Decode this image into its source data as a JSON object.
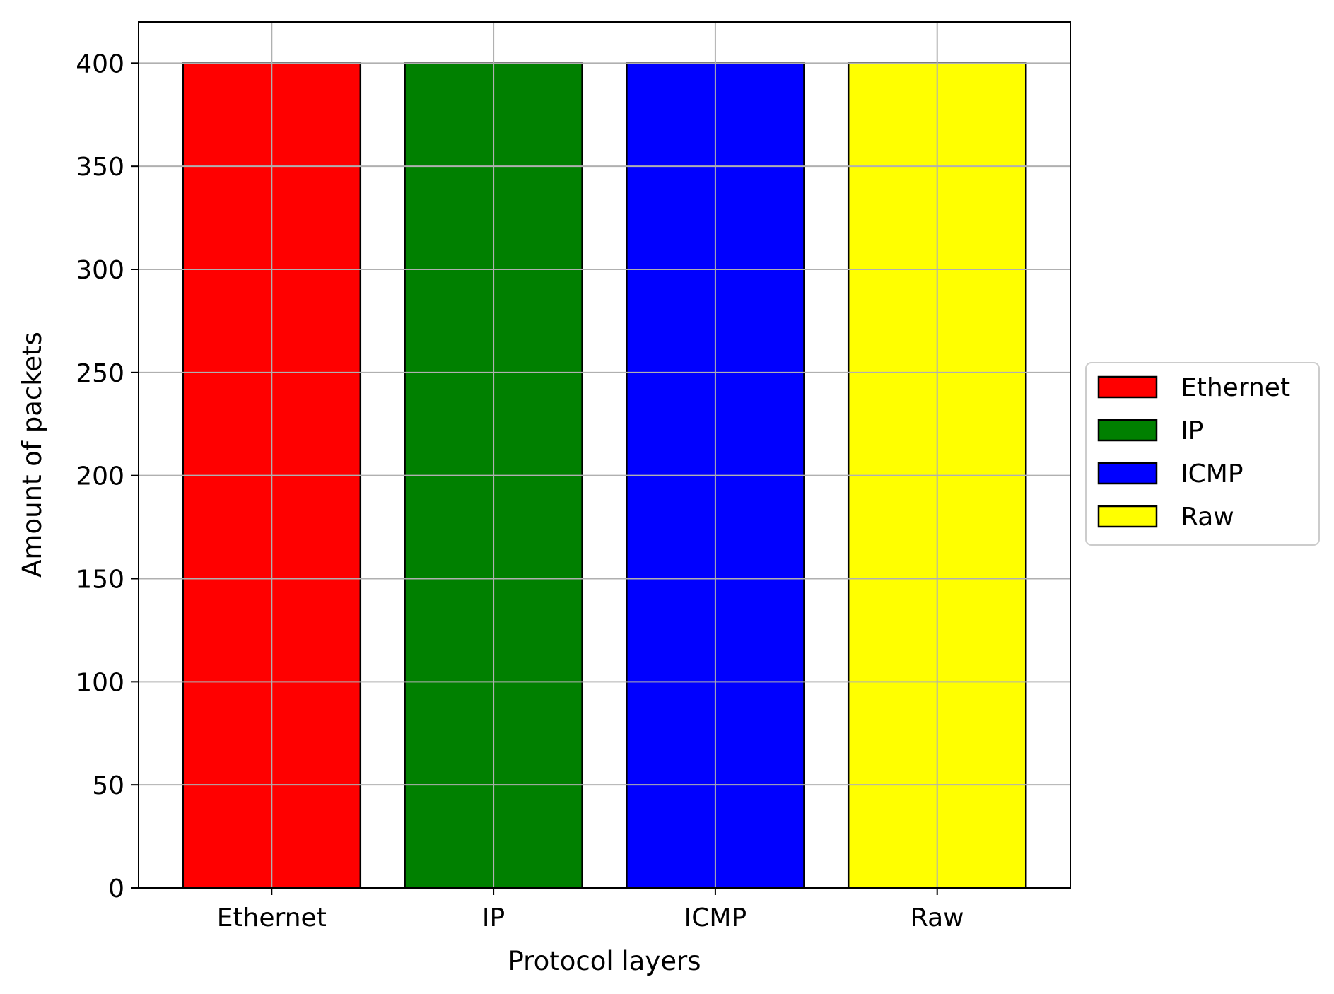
{
  "chart_data": {
    "type": "bar",
    "categories": [
      "Ethernet",
      "IP",
      "ICMP",
      "Raw"
    ],
    "values": [
      400,
      400,
      400,
      400
    ],
    "colors": [
      "#ff0000",
      "#008000",
      "#0000ff",
      "#ffff00"
    ],
    "title": "",
    "xlabel": "Protocol layers",
    "ylabel": "Amount of packets",
    "ylim": [
      0,
      420
    ],
    "yticks": [
      0,
      50,
      100,
      150,
      200,
      250,
      300,
      350,
      400
    ],
    "grid": true,
    "legend": {
      "placement": "right",
      "entries": [
        "Ethernet",
        "IP",
        "ICMP",
        "Raw"
      ]
    }
  }
}
